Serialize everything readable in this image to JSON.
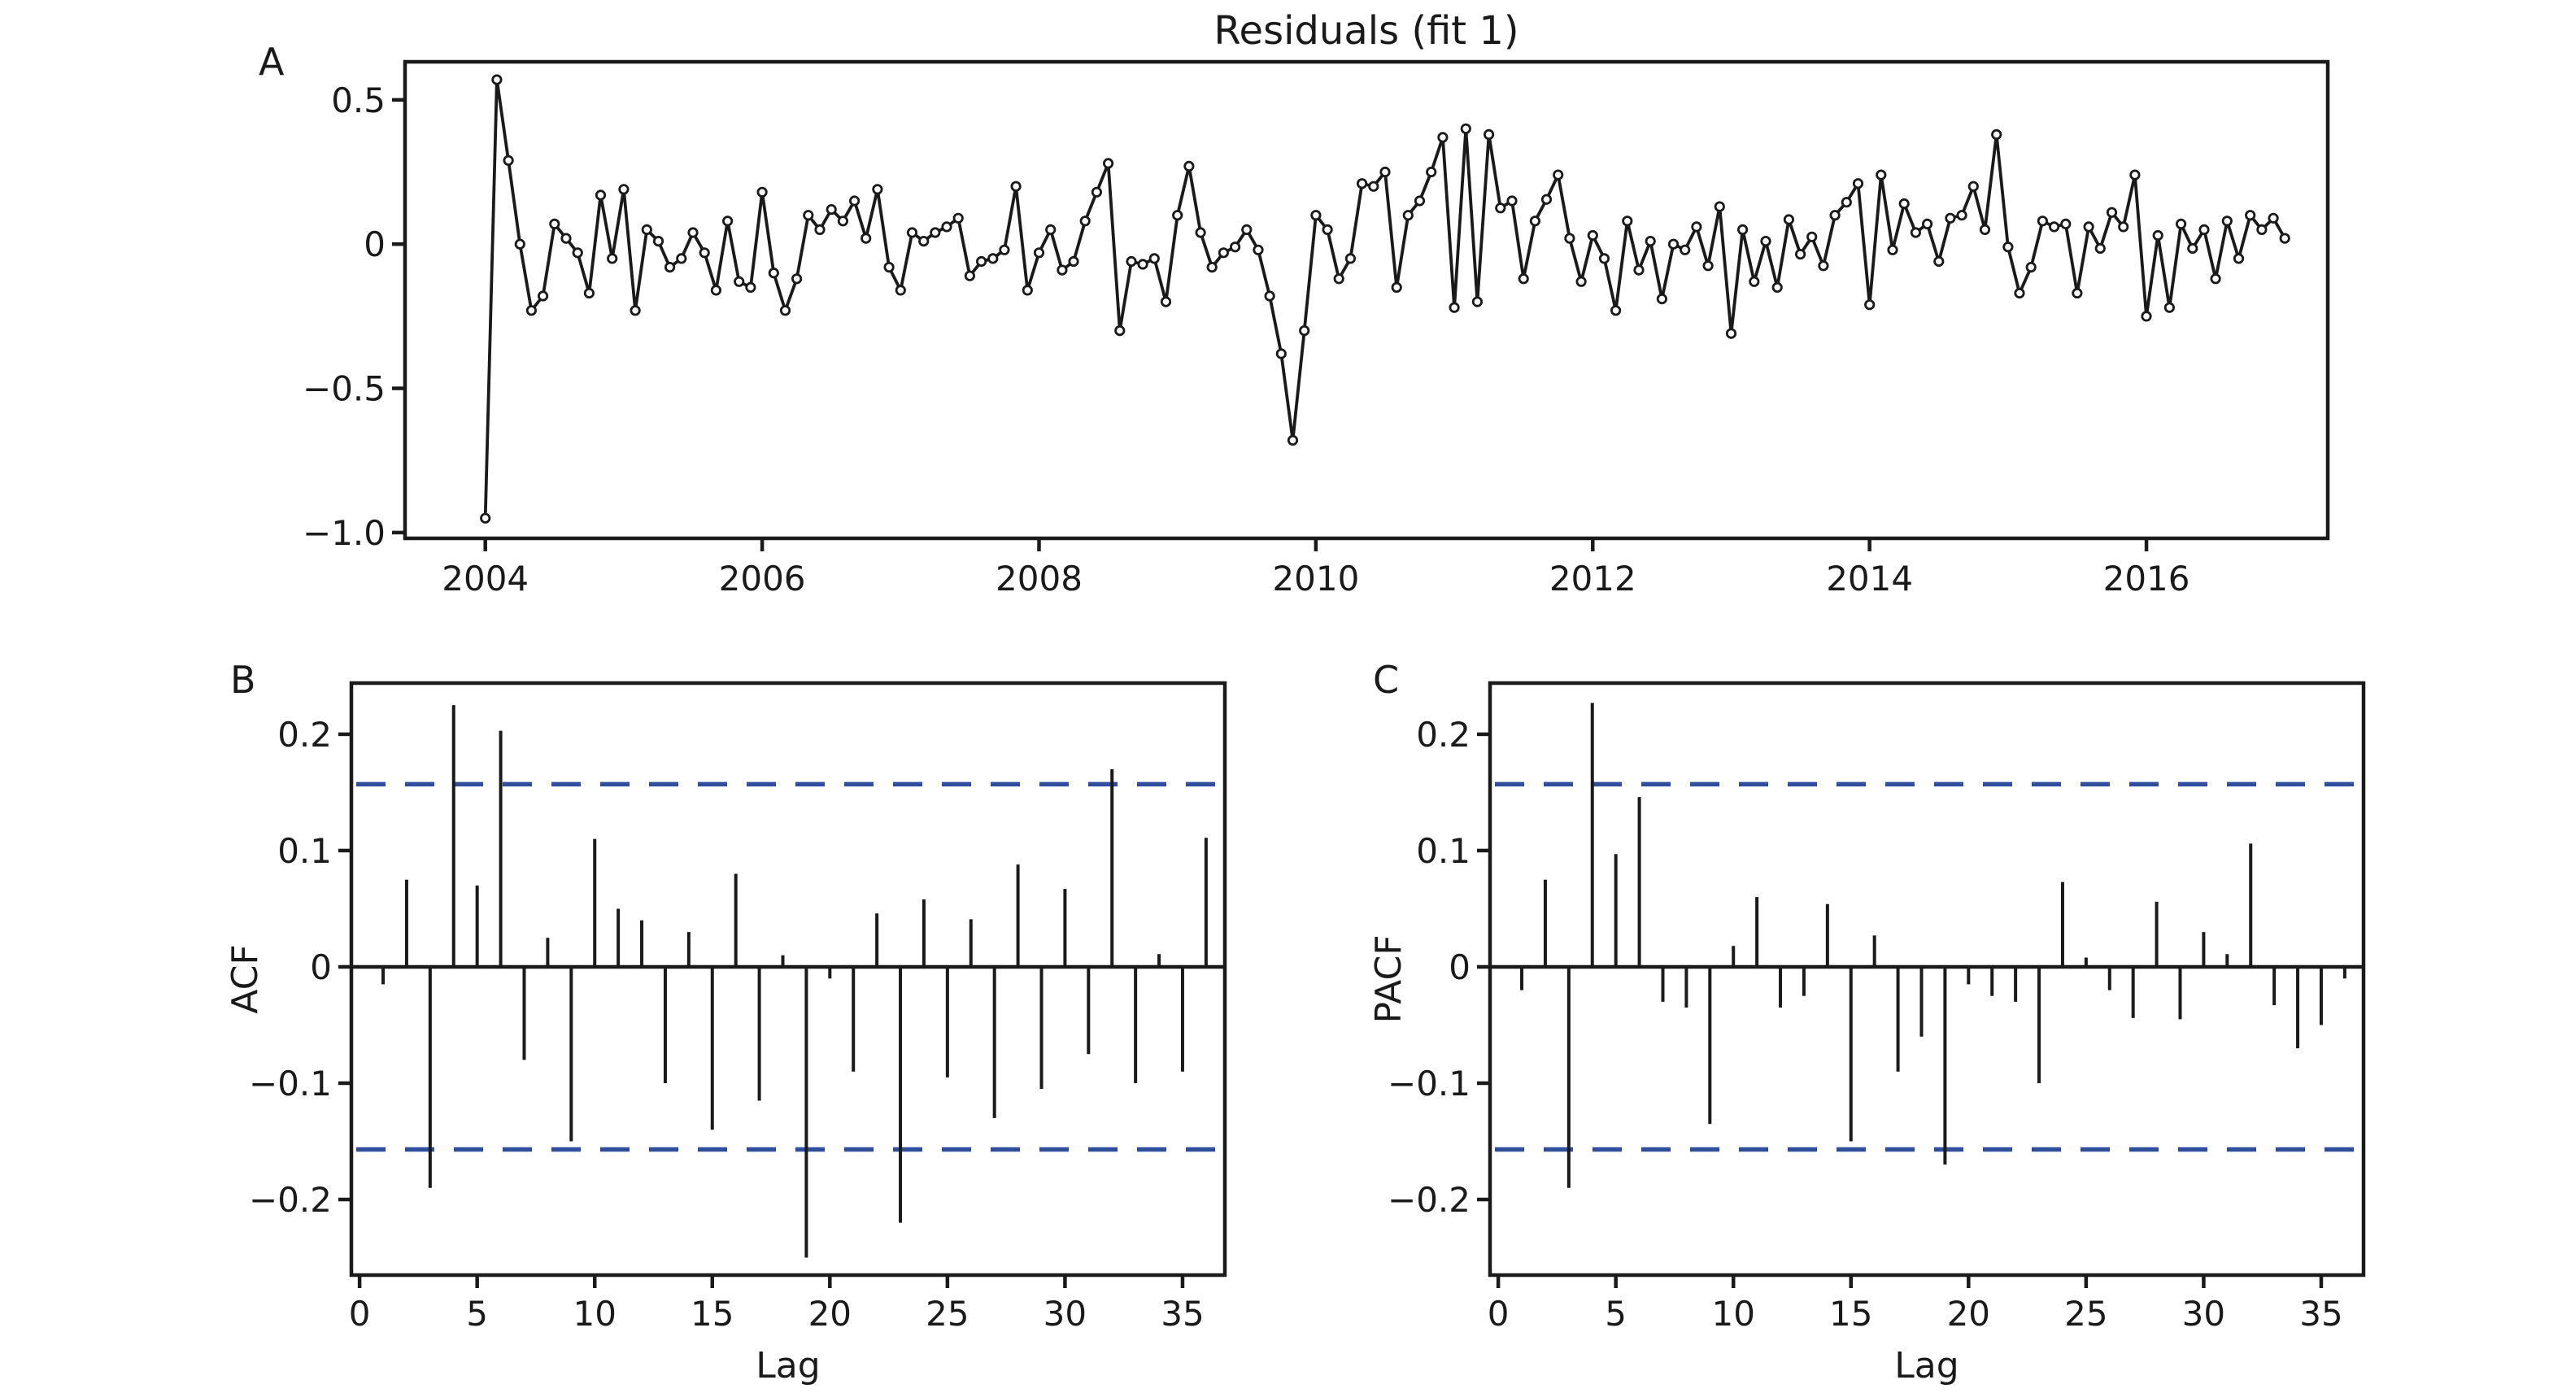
{
  "title": "Residuals (fit 1)",
  "colors": {
    "line": "#1a1a1a",
    "marker_fill": "#ffffff",
    "spine": "#1a1a1a",
    "conf_band": "#2f4e9d",
    "background": "#ffffff"
  },
  "chart_data": [
    {
      "type": "line",
      "id": "residuals",
      "panel_label": "A",
      "title": "Residuals (fit 1)",
      "xlabel": "",
      "ylabel": "",
      "x_start": 2004.0,
      "x_step_years": 0.0833333,
      "xlim": [
        2003.42,
        2017.31
      ],
      "ylim": [
        -1.02,
        0.632
      ],
      "xticks": [
        2004,
        2006,
        2008,
        2010,
        2012,
        2014,
        2016
      ],
      "yticks": [
        0.5,
        0,
        -0.5,
        -1.0
      ],
      "ytick_labels": [
        "0.5",
        "0",
        "−0.5",
        "−1.0"
      ],
      "values": [
        -0.95,
        0.57,
        0.29,
        0.0,
        -0.23,
        -0.18,
        0.07,
        0.02,
        -0.03,
        -0.17,
        0.17,
        -0.05,
        0.19,
        -0.23,
        0.05,
        0.01,
        -0.08,
        -0.05,
        0.04,
        -0.03,
        -0.16,
        0.08,
        -0.13,
        -0.15,
        0.18,
        -0.1,
        -0.23,
        -0.12,
        0.1,
        0.05,
        0.12,
        0.08,
        0.15,
        0.02,
        0.19,
        -0.08,
        -0.16,
        0.04,
        0.01,
        0.04,
        0.06,
        0.09,
        -0.11,
        -0.06,
        -0.05,
        -0.02,
        0.2,
        -0.16,
        -0.03,
        0.05,
        -0.09,
        -0.06,
        0.08,
        0.18,
        0.28,
        -0.3,
        -0.06,
        -0.07,
        -0.05,
        -0.2,
        0.1,
        0.27,
        0.04,
        -0.08,
        -0.03,
        -0.01,
        0.05,
        -0.02,
        -0.18,
        -0.38,
        -0.68,
        -0.3,
        0.1,
        0.05,
        -0.12,
        -0.05,
        0.21,
        0.2,
        0.25,
        -0.15,
        0.1,
        0.15,
        0.25,
        0.37,
        -0.22,
        0.4,
        -0.2,
        0.38,
        0.125,
        0.15,
        -0.12,
        0.08,
        0.155,
        0.24,
        0.02,
        -0.13,
        0.03,
        -0.05,
        -0.23,
        0.08,
        -0.09,
        0.01,
        -0.19,
        0.0,
        -0.02,
        0.06,
        -0.075,
        0.13,
        -0.31,
        0.05,
        -0.13,
        0.01,
        -0.15,
        0.085,
        -0.035,
        0.025,
        -0.075,
        0.1,
        0.145,
        0.21,
        -0.21,
        0.24,
        -0.02,
        0.14,
        0.04,
        0.07,
        -0.06,
        0.09,
        0.1,
        0.2,
        0.05,
        0.38,
        -0.01,
        -0.17,
        -0.08,
        0.08,
        0.06,
        0.07,
        -0.17,
        0.06,
        -0.015,
        0.11,
        0.06,
        0.24,
        -0.25,
        0.03,
        -0.22,
        0.07,
        -0.015,
        0.05,
        -0.12,
        0.08,
        -0.05,
        0.1,
        0.05,
        0.09,
        0.02
      ]
    },
    {
      "type": "bar",
      "id": "acf",
      "panel_label": "B",
      "xlabel": "Lag",
      "ylabel": "ACF",
      "xlim": [
        -0.35,
        36.8
      ],
      "ylim": [
        -0.265,
        0.244
      ],
      "xticks": [
        0,
        5,
        10,
        15,
        20,
        25,
        30,
        35
      ],
      "yticks": [
        0.2,
        0.1,
        0,
        -0.1,
        -0.2
      ],
      "ytick_labels": [
        "0.2",
        "0.1",
        "0",
        "−0.1",
        "−0.2"
      ],
      "conf_level": 0.157,
      "lags": [
        1,
        2,
        3,
        4,
        5,
        6,
        7,
        8,
        9,
        10,
        11,
        12,
        13,
        14,
        15,
        16,
        17,
        18,
        19,
        20,
        21,
        22,
        23,
        24,
        25,
        26,
        27,
        28,
        29,
        30,
        31,
        32,
        33,
        34,
        35,
        36
      ],
      "values": [
        -0.015,
        0.075,
        -0.19,
        0.225,
        0.07,
        0.203,
        -0.08,
        0.025,
        -0.15,
        0.11,
        0.05,
        0.04,
        -0.1,
        0.03,
        -0.14,
        0.08,
        -0.115,
        0.01,
        -0.25,
        -0.01,
        -0.09,
        0.046,
        -0.22,
        0.058,
        -0.095,
        0.041,
        -0.13,
        0.088,
        -0.105,
        0.067,
        -0.075,
        0.17,
        -0.1,
        0.011,
        -0.09,
        0.111
      ]
    },
    {
      "type": "bar",
      "id": "pacf",
      "panel_label": "C",
      "xlabel": "Lag",
      "ylabel": "PACF",
      "xlim": [
        -0.35,
        36.8
      ],
      "ylim": [
        -0.265,
        0.244
      ],
      "xticks": [
        0,
        5,
        10,
        15,
        20,
        25,
        30,
        35
      ],
      "yticks": [
        0.2,
        0.1,
        0,
        -0.1,
        -0.2
      ],
      "ytick_labels": [
        "0.2",
        "0.1",
        "0",
        "−0.1",
        "−0.2"
      ],
      "conf_level": 0.157,
      "lags": [
        1,
        2,
        3,
        4,
        5,
        6,
        7,
        8,
        9,
        10,
        11,
        12,
        13,
        14,
        15,
        16,
        17,
        18,
        19,
        20,
        21,
        22,
        23,
        24,
        25,
        26,
        27,
        28,
        29,
        30,
        31,
        32,
        33,
        34,
        35,
        36
      ],
      "values": [
        -0.02,
        0.075,
        -0.19,
        0.227,
        0.097,
        0.146,
        -0.03,
        -0.035,
        -0.135,
        0.018,
        0.06,
        -0.035,
        -0.025,
        0.054,
        -0.15,
        0.027,
        -0.09,
        -0.06,
        -0.17,
        -0.015,
        -0.025,
        -0.03,
        -0.1,
        0.073,
        0.008,
        -0.02,
        -0.044,
        0.056,
        -0.045,
        0.03,
        0.011,
        0.106,
        -0.033,
        -0.07,
        -0.05,
        -0.01
      ]
    }
  ]
}
